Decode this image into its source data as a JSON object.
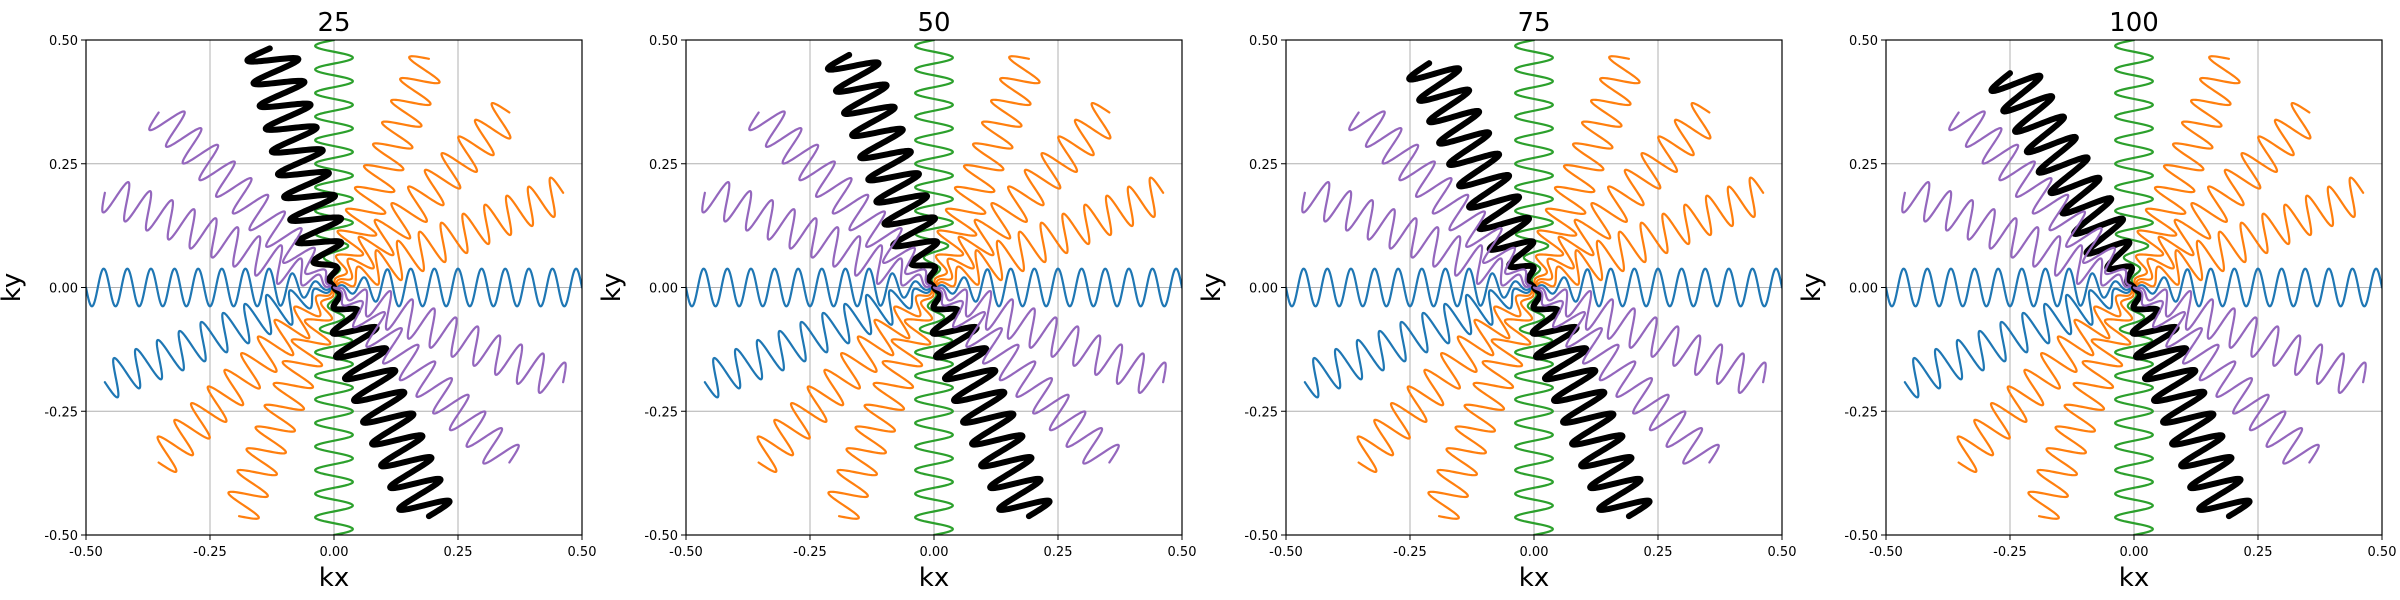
{
  "chart_data": [
    {
      "type": "line",
      "title": "25",
      "xlabel": "kx",
      "ylabel": "ky",
      "xlim": [
        -0.5,
        0.5
      ],
      "ylim": [
        -0.5,
        0.5
      ],
      "xticks": [
        "-0.50",
        "-0.25",
        "0.00",
        "0.25",
        "0.50"
      ],
      "yticks": [
        "-0.50",
        "-0.25",
        "0.00",
        "0.25",
        "0.50"
      ],
      "grid": true,
      "legend": "none",
      "highlight_angle_deg": 105,
      "series": [
        {
          "angle_deg": 0,
          "color": "#1f77b4",
          "emphasis": false
        },
        {
          "angle_deg": 22.5,
          "color": "#ff7f0e",
          "emphasis": false
        },
        {
          "angle_deg": 45,
          "color": "#ff7f0e",
          "emphasis": false
        },
        {
          "angle_deg": 67.5,
          "color": "#ff7f0e",
          "emphasis": false
        },
        {
          "angle_deg": 90,
          "color": "#2ca02c",
          "emphasis": false
        },
        {
          "angle_deg": 105,
          "color": "#000000",
          "emphasis": true
        },
        {
          "angle_deg": 135,
          "color": "#9467bd",
          "emphasis": false
        },
        {
          "angle_deg": 157.5,
          "color": "#9467bd",
          "emphasis": false
        },
        {
          "angle_deg": 180,
          "color": "#1f77b4",
          "emphasis": false
        },
        {
          "angle_deg": 202.5,
          "color": "#1f77b4",
          "emphasis": false
        },
        {
          "angle_deg": 225,
          "color": "#ff7f0e",
          "emphasis": false
        },
        {
          "angle_deg": 247.5,
          "color": "#ff7f0e",
          "emphasis": false
        },
        {
          "angle_deg": 270,
          "color": "#2ca02c",
          "emphasis": false
        },
        {
          "angle_deg": 292.5,
          "color": "#000000",
          "emphasis": true
        },
        {
          "angle_deg": 315,
          "color": "#9467bd",
          "emphasis": false
        },
        {
          "angle_deg": 337.5,
          "color": "#9467bd",
          "emphasis": false
        }
      ]
    },
    {
      "type": "line",
      "title": "50",
      "xlabel": "kx",
      "ylabel": "ky",
      "xlim": [
        -0.5,
        0.5
      ],
      "ylim": [
        -0.5,
        0.5
      ],
      "xticks": [
        "-0.50",
        "-0.25",
        "0.00",
        "0.25",
        "0.50"
      ],
      "yticks": [
        "-0.50",
        "-0.25",
        "0.00",
        "0.25",
        "0.50"
      ],
      "grid": true,
      "legend": "none",
      "highlight_angle_deg": 110,
      "series": [
        {
          "angle_deg": 0,
          "color": "#1f77b4",
          "emphasis": false
        },
        {
          "angle_deg": 22.5,
          "color": "#ff7f0e",
          "emphasis": false
        },
        {
          "angle_deg": 45,
          "color": "#ff7f0e",
          "emphasis": false
        },
        {
          "angle_deg": 67.5,
          "color": "#ff7f0e",
          "emphasis": false
        },
        {
          "angle_deg": 90,
          "color": "#2ca02c",
          "emphasis": false
        },
        {
          "angle_deg": 110,
          "color": "#000000",
          "emphasis": true
        },
        {
          "angle_deg": 135,
          "color": "#9467bd",
          "emphasis": false
        },
        {
          "angle_deg": 157.5,
          "color": "#9467bd",
          "emphasis": false
        },
        {
          "angle_deg": 180,
          "color": "#1f77b4",
          "emphasis": false
        },
        {
          "angle_deg": 202.5,
          "color": "#1f77b4",
          "emphasis": false
        },
        {
          "angle_deg": 225,
          "color": "#ff7f0e",
          "emphasis": false
        },
        {
          "angle_deg": 247.5,
          "color": "#ff7f0e",
          "emphasis": false
        },
        {
          "angle_deg": 270,
          "color": "#2ca02c",
          "emphasis": false
        },
        {
          "angle_deg": 292.5,
          "color": "#000000",
          "emphasis": true
        },
        {
          "angle_deg": 315,
          "color": "#9467bd",
          "emphasis": false
        },
        {
          "angle_deg": 337.5,
          "color": "#9467bd",
          "emphasis": false
        }
      ]
    },
    {
      "type": "line",
      "title": "75",
      "xlabel": "kx",
      "ylabel": "ky",
      "xlim": [
        -0.5,
        0.5
      ],
      "ylim": [
        -0.5,
        0.5
      ],
      "xticks": [
        "-0.50",
        "-0.25",
        "0.00",
        "0.25",
        "0.50"
      ],
      "yticks": [
        "-0.50",
        "-0.25",
        "0.00",
        "0.25",
        "0.50"
      ],
      "grid": true,
      "legend": "none",
      "highlight_angle_deg": 115,
      "series": [
        {
          "angle_deg": 0,
          "color": "#1f77b4",
          "emphasis": false
        },
        {
          "angle_deg": 22.5,
          "color": "#ff7f0e",
          "emphasis": false
        },
        {
          "angle_deg": 45,
          "color": "#ff7f0e",
          "emphasis": false
        },
        {
          "angle_deg": 67.5,
          "color": "#ff7f0e",
          "emphasis": false
        },
        {
          "angle_deg": 90,
          "color": "#2ca02c",
          "emphasis": false
        },
        {
          "angle_deg": 115,
          "color": "#000000",
          "emphasis": true
        },
        {
          "angle_deg": 135,
          "color": "#9467bd",
          "emphasis": false
        },
        {
          "angle_deg": 157.5,
          "color": "#9467bd",
          "emphasis": false
        },
        {
          "angle_deg": 180,
          "color": "#1f77b4",
          "emphasis": false
        },
        {
          "angle_deg": 202.5,
          "color": "#1f77b4",
          "emphasis": false
        },
        {
          "angle_deg": 225,
          "color": "#ff7f0e",
          "emphasis": false
        },
        {
          "angle_deg": 247.5,
          "color": "#ff7f0e",
          "emphasis": false
        },
        {
          "angle_deg": 270,
          "color": "#2ca02c",
          "emphasis": false
        },
        {
          "angle_deg": 292.5,
          "color": "#000000",
          "emphasis": true
        },
        {
          "angle_deg": 315,
          "color": "#9467bd",
          "emphasis": false
        },
        {
          "angle_deg": 337.5,
          "color": "#9467bd",
          "emphasis": false
        }
      ]
    },
    {
      "type": "line",
      "title": "100",
      "xlabel": "kx",
      "ylabel": "ky",
      "xlim": [
        -0.5,
        0.5
      ],
      "ylim": [
        -0.5,
        0.5
      ],
      "xticks": [
        "-0.50",
        "-0.25",
        "0.00",
        "0.25",
        "0.50"
      ],
      "yticks": [
        "-0.50",
        "-0.25",
        "0.00",
        "0.25",
        "0.50"
      ],
      "grid": true,
      "legend": "none",
      "highlight_angle_deg": 120,
      "series": [
        {
          "angle_deg": 0,
          "color": "#1f77b4",
          "emphasis": false
        },
        {
          "angle_deg": 22.5,
          "color": "#ff7f0e",
          "emphasis": false
        },
        {
          "angle_deg": 45,
          "color": "#ff7f0e",
          "emphasis": false
        },
        {
          "angle_deg": 67.5,
          "color": "#ff7f0e",
          "emphasis": false
        },
        {
          "angle_deg": 90,
          "color": "#2ca02c",
          "emphasis": false
        },
        {
          "angle_deg": 120,
          "color": "#000000",
          "emphasis": true
        },
        {
          "angle_deg": 135,
          "color": "#9467bd",
          "emphasis": false
        },
        {
          "angle_deg": 157.5,
          "color": "#9467bd",
          "emphasis": false
        },
        {
          "angle_deg": 180,
          "color": "#1f77b4",
          "emphasis": false
        },
        {
          "angle_deg": 202.5,
          "color": "#1f77b4",
          "emphasis": false
        },
        {
          "angle_deg": 225,
          "color": "#ff7f0e",
          "emphasis": false
        },
        {
          "angle_deg": 247.5,
          "color": "#ff7f0e",
          "emphasis": false
        },
        {
          "angle_deg": 270,
          "color": "#2ca02c",
          "emphasis": false
        },
        {
          "angle_deg": 292.5,
          "color": "#000000",
          "emphasis": true
        },
        {
          "angle_deg": 315,
          "color": "#9467bd",
          "emphasis": false
        },
        {
          "angle_deg": 337.5,
          "color": "#9467bd",
          "emphasis": false
        }
      ]
    }
  ]
}
